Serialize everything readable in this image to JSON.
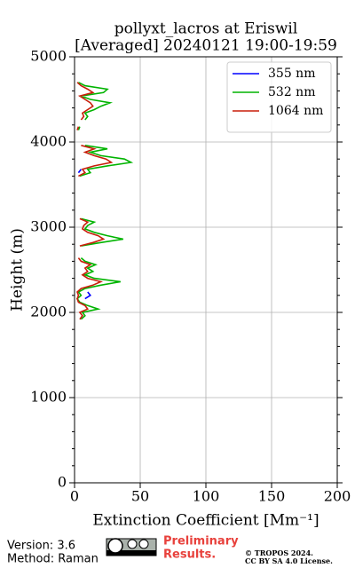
{
  "chart_data": {
    "type": "line",
    "title": "pollyxt_lacros at Eriswil",
    "subtitle": "[Averaged] 20240121 19:00-19:59",
    "xlabel": "Extinction Coefficient [Mm⁻¹]",
    "ylabel": "Height (m)",
    "xlim": [
      0,
      200
    ],
    "xticks": [
      0,
      50,
      100,
      150,
      200
    ],
    "ylim": [
      0,
      5000
    ],
    "yticks": [
      0,
      1000,
      2000,
      3000,
      4000,
      5000
    ],
    "grid": true,
    "legend": "upper right",
    "y": [
      1920,
      1960,
      2000,
      2040,
      2080,
      2120,
      2160,
      2200,
      2240,
      2280,
      2320,
      2360,
      2400,
      2440,
      2480,
      2520,
      2560,
      2600,
      2640,
      2680,
      2780,
      2820,
      2860,
      2900,
      2940,
      2980,
      3020,
      3060,
      3100,
      3140,
      3600,
      3640,
      3680,
      3720,
      3760,
      3800,
      3840,
      3880,
      3920,
      3960,
      4000,
      4140,
      4180,
      4220,
      4260,
      4300,
      4340,
      4380,
      4420,
      4460,
      4500,
      4540,
      4580,
      4620,
      4660,
      4700
    ],
    "series": [
      {
        "name": "355 nm",
        "color": "#0000ff",
        "values": [
          null,
          null,
          null,
          null,
          null,
          null,
          8,
          12,
          10,
          null,
          null,
          null,
          null,
          null,
          null,
          null,
          null,
          null,
          null,
          null,
          null,
          null,
          null,
          null,
          null,
          null,
          null,
          null,
          null,
          null,
          null,
          3,
          5,
          null,
          null,
          null,
          null,
          null,
          null,
          null,
          null,
          null,
          null,
          null,
          null,
          null,
          null,
          null,
          null,
          null,
          null,
          null,
          null,
          null,
          null,
          null
        ]
      },
      {
        "name": "532 nm",
        "color": "#00b400",
        "values": [
          5,
          8,
          6,
          18,
          10,
          4,
          2,
          5,
          3,
          8,
          20,
          35,
          15,
          8,
          14,
          10,
          16,
          8,
          5,
          null,
          5,
          20,
          37,
          25,
          15,
          8,
          10,
          15,
          5,
          null,
          4,
          12,
          10,
          25,
          43,
          38,
          20,
          12,
          25,
          8,
          null,
          3,
          4,
          null,
          8,
          10,
          8,
          15,
          20,
          27,
          12,
          5,
          22,
          25,
          8,
          3
        ]
      },
      {
        "name": "1064 nm",
        "color": "#c81e0a",
        "values": [
          4,
          6,
          4,
          10,
          8,
          3,
          2,
          3,
          2,
          5,
          14,
          20,
          10,
          6,
          10,
          8,
          12,
          5,
          3,
          null,
          4,
          14,
          22,
          18,
          10,
          6,
          7,
          10,
          4,
          null,
          3,
          8,
          6,
          15,
          28,
          24,
          15,
          8,
          15,
          5,
          null,
          2,
          3,
          null,
          5,
          7,
          6,
          10,
          14,
          12,
          8,
          4,
          14,
          10,
          5,
          2
        ]
      }
    ]
  },
  "footer": {
    "version": "Version: 3.6",
    "method": "Method: Raman",
    "preliminary": "Preliminary",
    "results": "Results.",
    "copyright": "© TROPOS 2024.",
    "license": "CC BY SA 4.0 License."
  }
}
